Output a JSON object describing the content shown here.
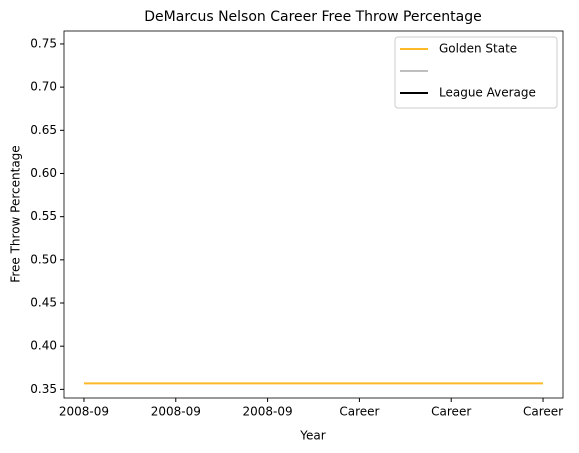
{
  "chart_data": {
    "type": "line",
    "title": "DeMarcus Nelson Career Free Throw Percentage",
    "x_label": "Year",
    "y_label": "Free Throw Percentage",
    "categories": [
      "2008-09",
      "2008-09",
      "2008-09",
      "Career",
      "Career",
      "Career"
    ],
    "series": [
      {
        "name": "Golden State",
        "color": "#FDB927",
        "values": [
          0.357,
          0.357,
          0.357,
          0.357,
          0.357,
          0.357
        ]
      },
      {
        "color": "#bfbfbf",
        "values": [
          null,
          null,
          null,
          null,
          null,
          null
        ]
      },
      {
        "name": "League Average",
        "color": "#000000",
        "values": [
          null,
          null,
          null,
          null,
          null,
          null
        ]
      }
    ],
    "ylim": [
      0.34,
      0.765
    ],
    "yticks": [
      0.35,
      {
        "value": 0.4,
        "label": "0.40"
      },
      0.45,
      {
        "value": 0.5,
        "label": "0.50"
      },
      0.55,
      {
        "value": 0.6,
        "label": "0.60"
      },
      0.65,
      {
        "value": 0.7,
        "label": "0.70"
      },
      0.75
    ],
    "legend": "upper right",
    "grid": false
  }
}
